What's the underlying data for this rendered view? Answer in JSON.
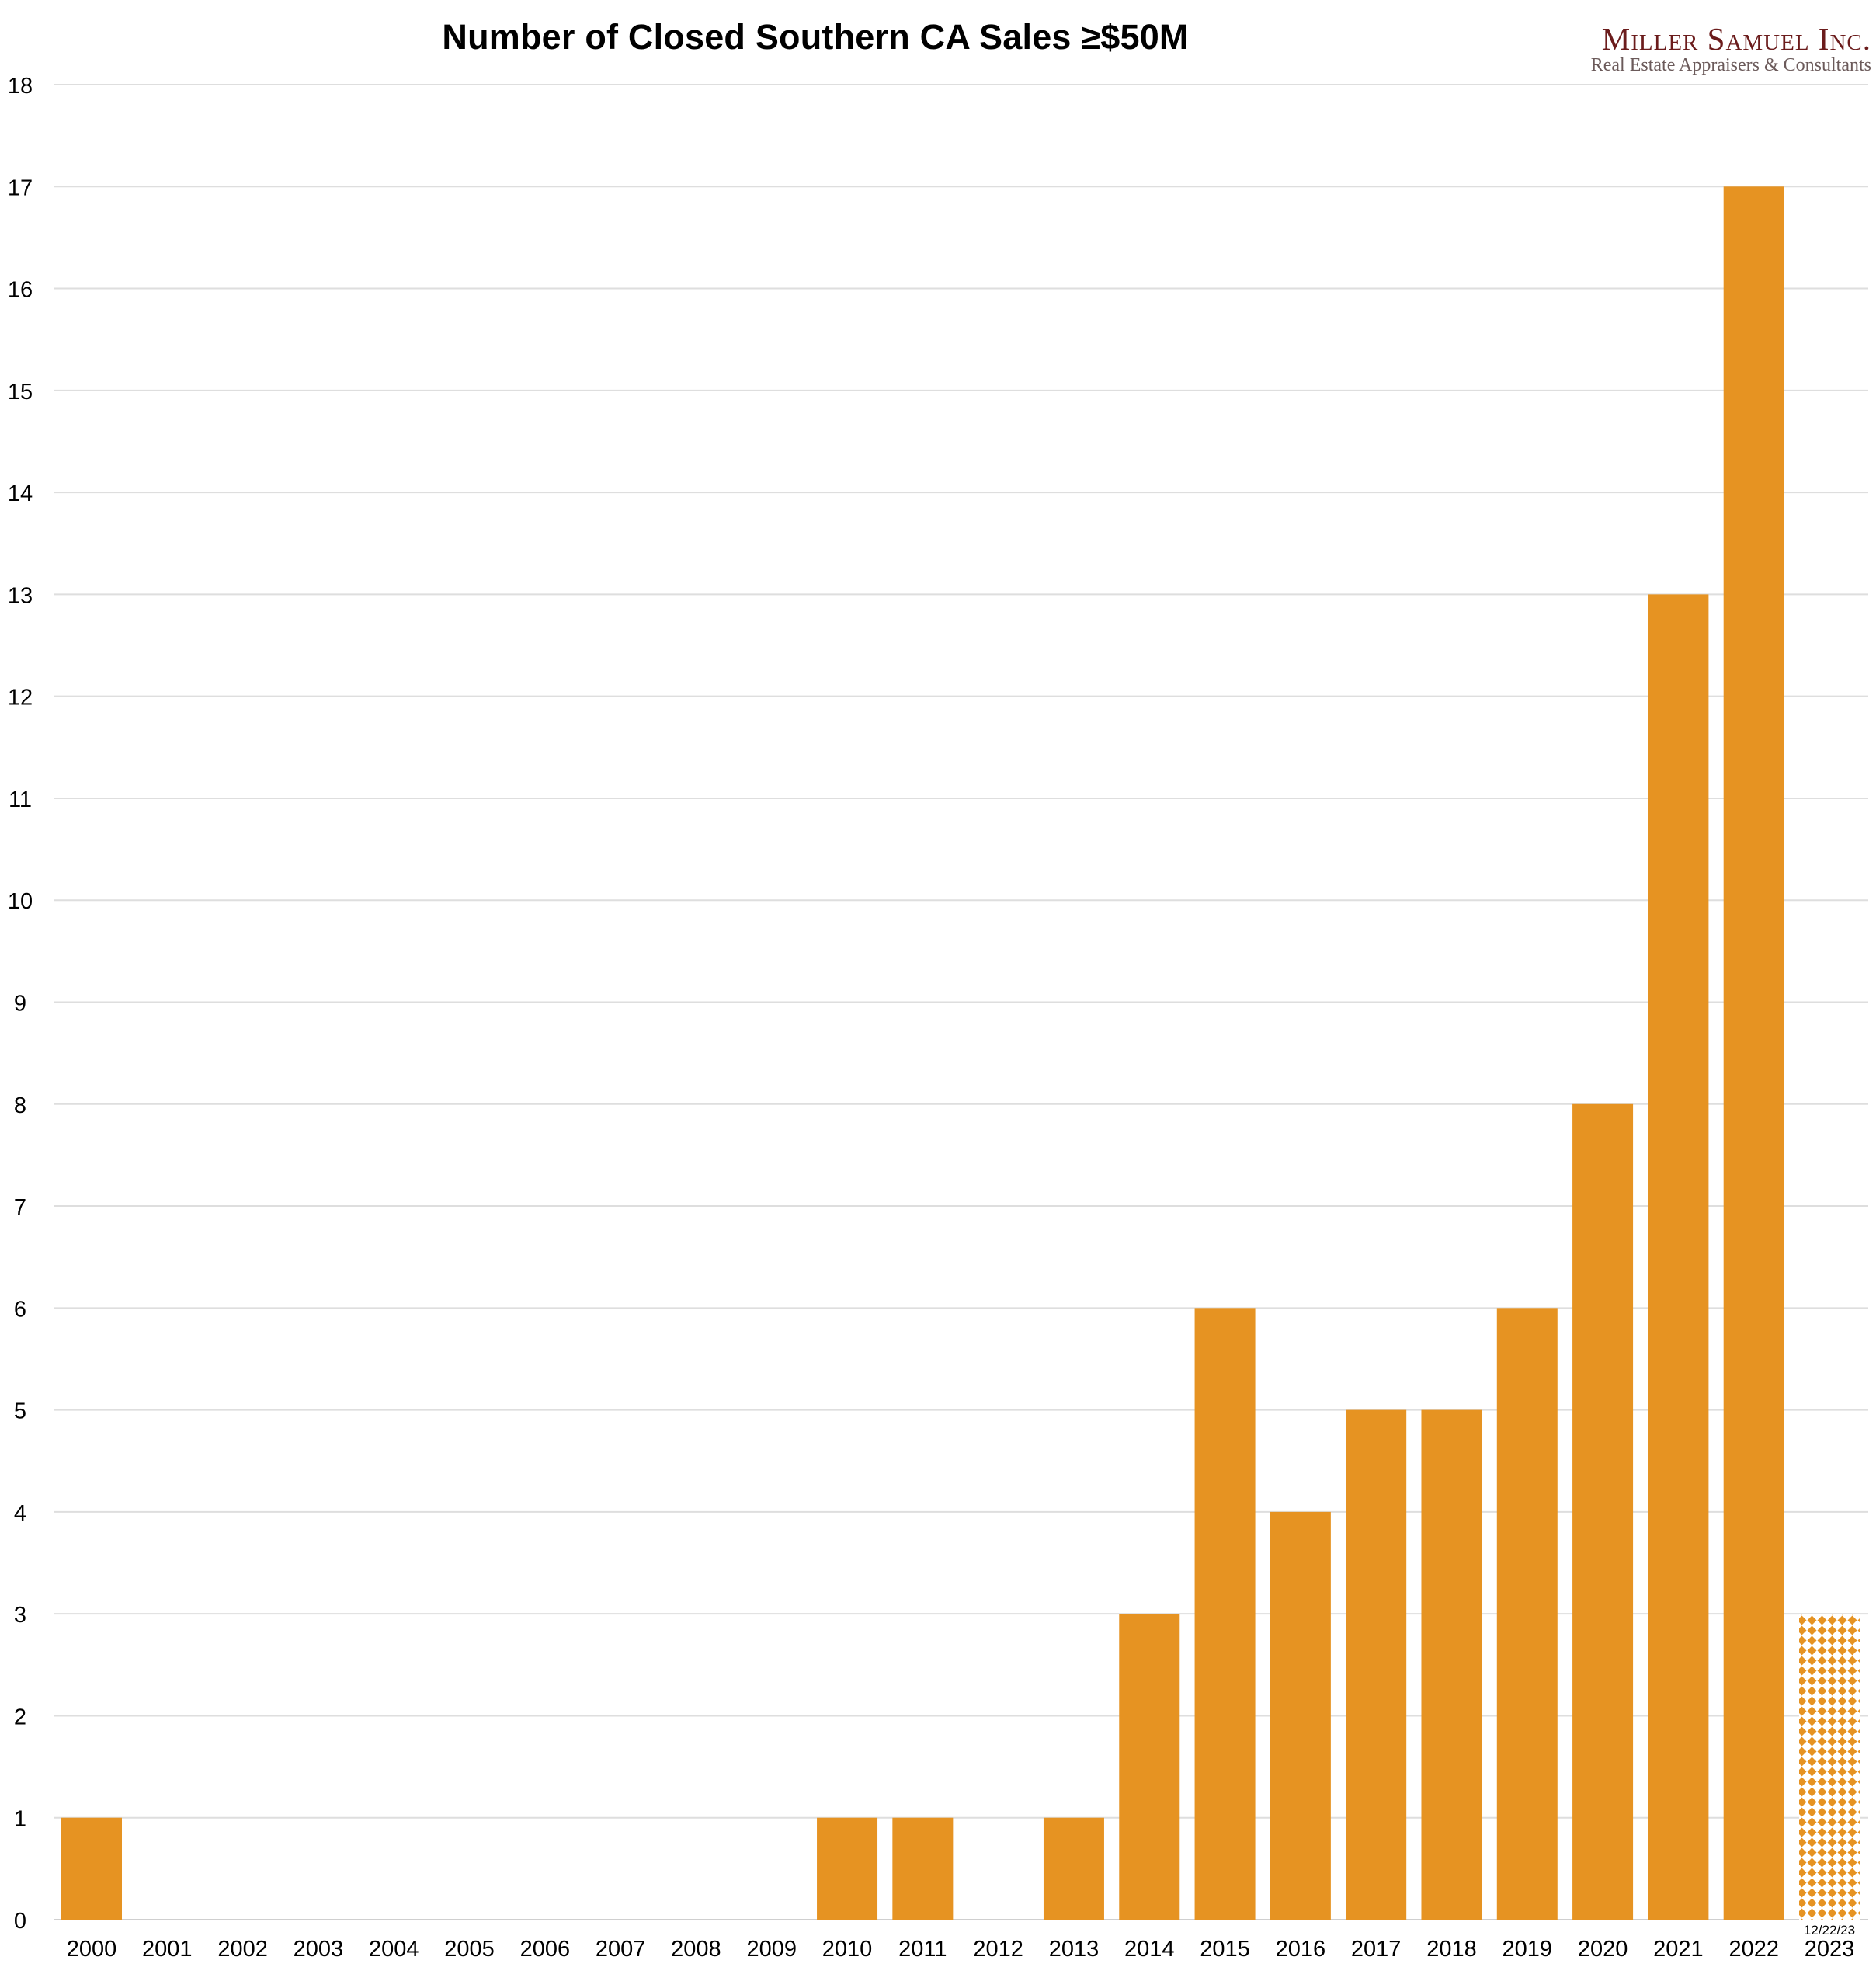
{
  "chart_data": {
    "type": "bar",
    "title": "Number of Closed Southern CA Sales ≥$50M",
    "xlabel": "",
    "ylabel": "",
    "ylim": [
      0,
      18
    ],
    "yticks": [
      0,
      1,
      2,
      3,
      4,
      5,
      6,
      7,
      8,
      9,
      10,
      11,
      12,
      13,
      14,
      15,
      16,
      17,
      18
    ],
    "grid": true,
    "categories": [
      "2000",
      "2001",
      "2002",
      "2003",
      "2004",
      "2005",
      "2006",
      "2007",
      "2008",
      "2009",
      "2010",
      "2011",
      "2012",
      "2013",
      "2014",
      "2015",
      "2016",
      "2017",
      "2018",
      "2019",
      "2020",
      "2021",
      "2022",
      "2023"
    ],
    "values": [
      1,
      0,
      0,
      0,
      0,
      0,
      0,
      0,
      0,
      0,
      1,
      1,
      0,
      1,
      3,
      6,
      4,
      5,
      5,
      6,
      8,
      13,
      17,
      3
    ],
    "partial_period": {
      "category": "2023",
      "note": "12/22/23",
      "style": "patterned"
    },
    "bar_color": "#e69322"
  },
  "logo": {
    "name": "Miller Samuel Inc.",
    "tagline": "Real Estate Appraisers & Consultants"
  }
}
